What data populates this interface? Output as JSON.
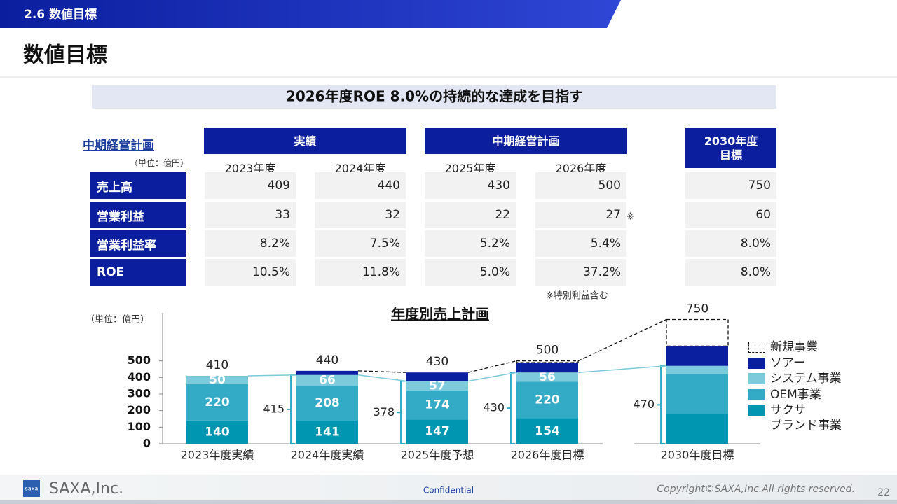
{
  "header": {
    "section": "2.6 数値目標",
    "title": "数値目標",
    "headline": "2026年度ROE 8.0%の持続的な達成を目指す"
  },
  "table": {
    "label": "中期経営計画",
    "unit": "（単位：億円）",
    "groups": [
      "実績",
      "中期経営計画",
      "2030年度\n目標"
    ],
    "columns": [
      "2023年度",
      "2024年度",
      "2025年度",
      "2026年度"
    ],
    "rows": [
      {
        "label": "売上高",
        "cells": [
          "409",
          "440",
          "430",
          "500",
          "750"
        ]
      },
      {
        "label": "営業利益",
        "cells": [
          "33",
          "32",
          "22",
          "27",
          "60"
        ]
      },
      {
        "label": "営業利益率",
        "cells": [
          "8.2%",
          "7.5%",
          "5.2%",
          "5.4%",
          "8.0%"
        ]
      },
      {
        "label": "ROE",
        "cells": [
          "10.5%",
          "11.8%",
          "5.0%",
          "37.2%",
          "8.0%"
        ]
      }
    ],
    "mark": "※",
    "footnote": "※特別利益含む"
  },
  "chart_data": {
    "type": "stacked_bar",
    "title": "年度別売上計画",
    "unit": "（単位：億円）",
    "categories": [
      "2023年度実績",
      "2024年度実績",
      "2025年度予想",
      "2026年度目標",
      "2030年度目標"
    ],
    "series": [
      {
        "name": "サクサ\nブランド事業",
        "color": "#0096b1",
        "values": [
          140,
          141,
          147,
          154,
          180
        ],
        "value_labels": [
          "140",
          "141",
          "147",
          "154",
          null
        ]
      },
      {
        "name": "OEM事業",
        "color": "#33abc6",
        "values": [
          220,
          208,
          174,
          220,
          240
        ],
        "value_labels": [
          "220",
          "208",
          "174",
          "220",
          null
        ]
      },
      {
        "name": "システム事業",
        "color": "#7ccadb",
        "values": [
          50,
          66,
          57,
          56,
          50
        ],
        "value_labels": [
          "50",
          "66",
          "57",
          "56",
          null
        ]
      },
      {
        "name": "ソアー",
        "color": "#0a1ea0",
        "values": [
          0,
          25,
          52,
          60,
          120
        ]
      },
      {
        "name": "新規事業",
        "color": "#ffffff",
        "values": [
          0,
          0,
          0,
          10,
          160
        ]
      }
    ],
    "totals": [
      410,
      440,
      430,
      500,
      750
    ],
    "brackets": [
      null,
      415,
      378,
      430,
      470
    ],
    "ylim": [
      0,
      790
    ],
    "yticks": [
      0,
      100,
      200,
      300,
      400,
      500
    ]
  },
  "footer": {
    "logo": "saxa",
    "company": "SAXA,Inc.",
    "confidential": "Confidential",
    "copyright": "Copyright©SAXA,Inc.All rights reserved.",
    "page": "22"
  }
}
